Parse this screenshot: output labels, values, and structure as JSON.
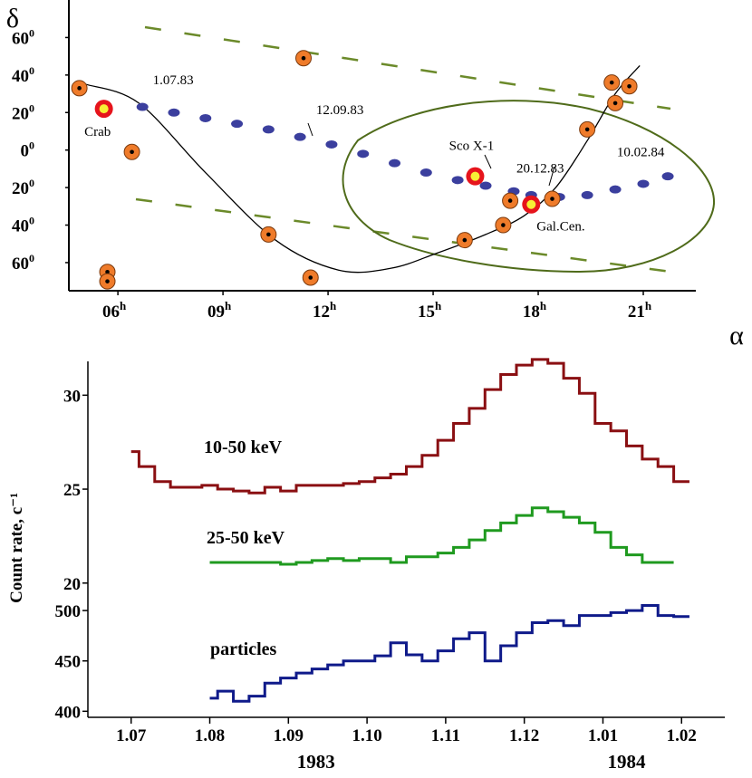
{
  "chart_data": [
    {
      "type": "scatter",
      "xlabel": "α",
      "ylabel": "δ",
      "x_ticks": [
        "06",
        "09",
        "12",
        "15",
        "18",
        "21"
      ],
      "x_tick_sup": "h",
      "y_ticks": [
        "60",
        "40",
        "20",
        "0",
        "20",
        "40",
        "60"
      ],
      "y_tick_values": [
        60,
        40,
        20,
        0,
        -20,
        -40,
        -60
      ],
      "y_tick_sup": "0",
      "xlim": [
        4.6,
        22.5
      ],
      "ylim": [
        -75,
        80
      ],
      "colors": {
        "track": "#3b3f9e",
        "source_fill": "#ef7b2a",
        "bright_ring": "#e6141c",
        "bright_core": "#f7ef35",
        "contour": "#4f6b1a",
        "dash": "#6b8a2a",
        "curve": "#000000"
      },
      "track": {
        "name": "satellite axis track",
        "x": [
          6.7,
          7.6,
          8.5,
          9.4,
          10.3,
          11.2,
          12.1,
          13.0,
          13.9,
          14.8,
          15.7,
          16.5,
          17.3,
          17.8,
          18.6,
          19.4,
          20.2,
          21.0,
          21.7
        ],
        "y": [
          23,
          20,
          17,
          14,
          11,
          7,
          3,
          -2,
          -7,
          -12,
          -16,
          -19,
          -22,
          -24,
          -25,
          -24,
          -21,
          -18,
          -14
        ]
      },
      "track_labels": [
        {
          "text": "1.07.83",
          "x": 6.7,
          "y": 23
        },
        {
          "text": "12.09.83",
          "x": 11.2,
          "y": 7
        },
        {
          "text": "20.12.83",
          "x": 17.8,
          "y": -24
        },
        {
          "text": "10.02.84",
          "x": 21.7,
          "y": -14
        }
      ],
      "sources": {
        "x": [
          4.9,
          6.4,
          5.7,
          5.7,
          10.3,
          11.3,
          11.5,
          15.9,
          17.0,
          17.2,
          18.4,
          19.4,
          20.1,
          20.2,
          20.6
        ],
        "y": [
          33,
          -1,
          -65,
          -70,
          -45,
          49,
          -68,
          -48,
          -40,
          -27,
          -26,
          11,
          36,
          25,
          34
        ]
      },
      "bright_sources": [
        {
          "label": "Crab",
          "x": 5.6,
          "y": 22
        },
        {
          "label": "Sco X-1",
          "x": 16.2,
          "y": -14
        },
        {
          "label": "Gal.Cen.",
          "x": 17.8,
          "y": -29
        }
      ],
      "curve": {
        "x": [
          5.1,
          6.6,
          8.5,
          10.5,
          12.3,
          13.8,
          15.1,
          16.5,
          17.6,
          18.5,
          19.4,
          20.2,
          20.9
        ],
        "y": [
          35,
          25,
          -12,
          -48,
          -64,
          -63,
          -55,
          -45,
          -35,
          -20,
          5,
          30,
          45
        ]
      }
    },
    {
      "type": "line",
      "step": true,
      "ylabel": "Count rate, c⁻¹",
      "x_ticks": [
        "1.07",
        "1.08",
        "1.09",
        "1.10",
        "1.11",
        "1.12",
        "1.01",
        "1.02"
      ],
      "x_tick_values": [
        0,
        1,
        2,
        3,
        4,
        5,
        6,
        7
      ],
      "year_labels": [
        {
          "text": "1983",
          "x": 2.35
        },
        {
          "text": "1984",
          "x": 6.3
        }
      ],
      "xlim": [
        -0.55,
        7.55
      ],
      "upper_y_ticks": [
        30,
        25,
        20
      ],
      "lower_y_ticks": [
        500,
        450,
        400
      ],
      "upper_ylim": [
        19.7,
        31.8
      ],
      "lower_ylim": [
        394,
        510
      ],
      "series": [
        {
          "name": "10-50 keV",
          "color": "#8a0f12",
          "x": [
            0,
            0.2,
            0.4,
            0.6,
            0.8,
            1.0,
            1.2,
            1.4,
            1.6,
            1.8,
            2.0,
            2.2,
            2.4,
            2.6,
            2.8,
            3.0,
            3.2,
            3.4,
            3.6,
            3.8,
            4.0,
            4.2,
            4.4,
            4.6,
            4.8,
            5.0,
            5.2,
            5.4,
            5.6,
            5.8,
            6.0,
            6.2,
            6.4,
            6.6,
            6.8,
            7.0
          ],
          "y": [
            27.0,
            26.2,
            25.4,
            25.1,
            25.1,
            25.2,
            25.0,
            24.9,
            24.8,
            25.1,
            24.9,
            25.2,
            25.2,
            25.2,
            25.3,
            25.4,
            25.6,
            25.8,
            26.2,
            26.8,
            27.6,
            28.5,
            29.3,
            30.3,
            31.1,
            31.6,
            31.9,
            31.7,
            30.9,
            30.1,
            28.5,
            28.1,
            27.3,
            26.6,
            26.2,
            25.4
          ]
        },
        {
          "name": "25-50 keV",
          "color": "#1f9a1f",
          "x": [
            1.0,
            1.2,
            1.4,
            1.6,
            1.8,
            2.0,
            2.2,
            2.4,
            2.6,
            2.8,
            3.0,
            3.2,
            3.4,
            3.6,
            3.8,
            4.0,
            4.2,
            4.4,
            4.6,
            4.8,
            5.0,
            5.2,
            5.4,
            5.6,
            5.8,
            6.0,
            6.2,
            6.4,
            6.6,
            6.8
          ],
          "y": [
            21.1,
            21.1,
            21.1,
            21.1,
            21.1,
            21.0,
            21.1,
            21.2,
            21.3,
            21.2,
            21.3,
            21.3,
            21.1,
            21.4,
            21.4,
            21.6,
            21.9,
            22.3,
            22.8,
            23.2,
            23.6,
            24.0,
            23.8,
            23.5,
            23.2,
            22.7,
            21.9,
            21.5,
            21.1,
            21.1
          ]
        },
        {
          "name": "particles",
          "color": "#0f1a8a",
          "x": [
            1.0,
            1.2,
            1.4,
            1.6,
            1.8,
            2.0,
            2.2,
            2.4,
            2.6,
            2.8,
            3.0,
            3.2,
            3.4,
            3.6,
            3.8,
            4.0,
            4.2,
            4.4,
            4.6,
            4.8,
            5.0,
            5.2,
            5.4,
            5.6,
            5.8,
            6.0,
            6.2,
            6.4,
            6.6,
            6.8,
            7.0
          ],
          "y": [
            413,
            420,
            410,
            415,
            428,
            433,
            438,
            442,
            446,
            450,
            450,
            455,
            468,
            456,
            450,
            460,
            472,
            478,
            450,
            465,
            478,
            488,
            490,
            485,
            495,
            495,
            498,
            500,
            505,
            495,
            494
          ]
        }
      ]
    }
  ]
}
